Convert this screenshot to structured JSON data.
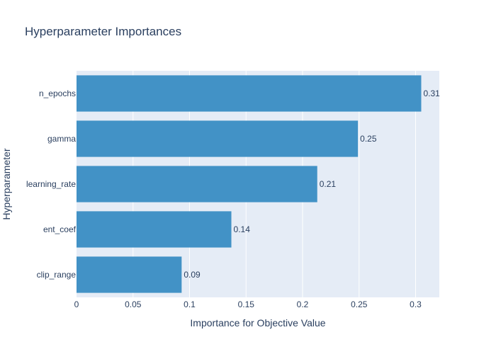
{
  "chart_data": {
    "type": "bar",
    "orientation": "horizontal",
    "title": "Hyperparameter Importances",
    "xlabel": "Importance for Objective Value",
    "ylabel": "Hyperparameter",
    "categories": [
      "n_epochs",
      "gamma",
      "learning_rate",
      "ent_coef",
      "clip_range"
    ],
    "values": [
      0.305,
      0.249,
      0.213,
      0.137,
      0.093
    ],
    "data_labels": [
      "0.31",
      "0.25",
      "0.21",
      "0.14",
      "0.09"
    ],
    "x_ticks": [
      0,
      0.05,
      0.1,
      0.15,
      0.2,
      0.25,
      0.3
    ],
    "x_tick_labels": [
      "0",
      "0.05",
      "0.1",
      "0.15",
      "0.2",
      "0.25",
      "0.3"
    ],
    "xlim": [
      0,
      0.321
    ],
    "grid": true,
    "legend": "none",
    "colors": {
      "bar": "#4292c6",
      "plot_background": "#e5ecf6",
      "grid": "#ffffff",
      "text": "#2a3f5f"
    }
  }
}
